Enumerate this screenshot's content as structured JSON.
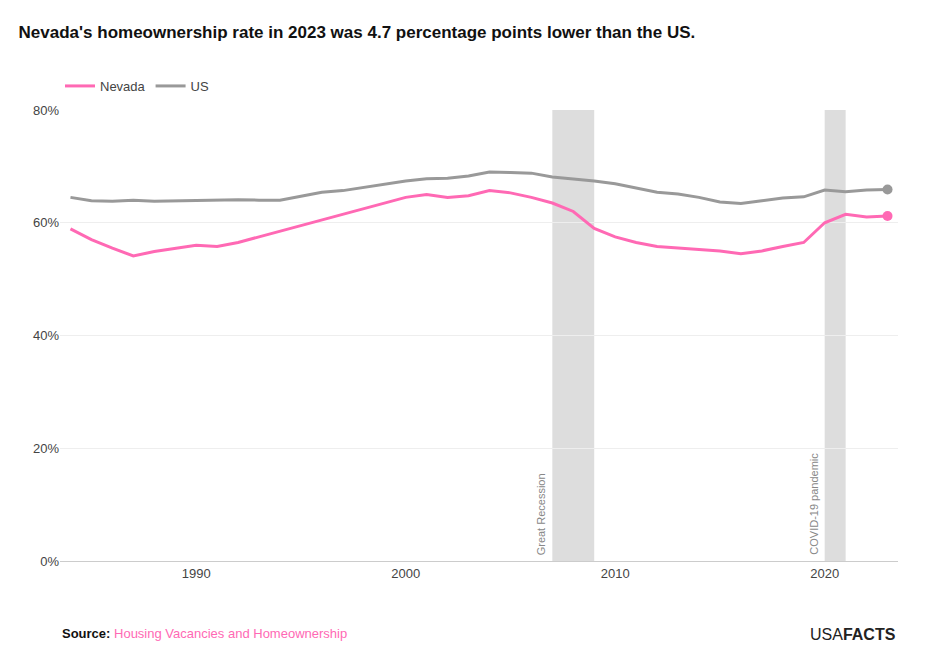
{
  "chart_data": {
    "type": "line",
    "title": "Nevada's homeownership rate in 2023 was 4.7 percentage points lower than the US.",
    "x": [
      1984,
      1985,
      1986,
      1987,
      1988,
      1989,
      1990,
      1991,
      1992,
      1993,
      1994,
      1995,
      1996,
      1997,
      1998,
      1999,
      2000,
      2001,
      2002,
      2003,
      2004,
      2005,
      2006,
      2007,
      2008,
      2009,
      2010,
      2011,
      2012,
      2013,
      2014,
      2015,
      2016,
      2017,
      2018,
      2019,
      2020,
      2021,
      2022,
      2023
    ],
    "series": [
      {
        "name": "Nevada",
        "color": "#FF69B4",
        "values": [
          58.9,
          57.0,
          55.5,
          54.1,
          54.9,
          55.5,
          56.0,
          55.8,
          56.5,
          57.5,
          58.5,
          59.5,
          60.5,
          61.5,
          62.5,
          63.5,
          64.5,
          65.0,
          64.5,
          64.8,
          65.7,
          65.3,
          64.5,
          63.5,
          62.0,
          59.0,
          57.5,
          56.5,
          55.8,
          55.5,
          55.2,
          55.0,
          54.5,
          55.0,
          55.8,
          56.5,
          60.0,
          61.5,
          61.0,
          61.2
        ]
      },
      {
        "name": "US",
        "color": "#999999",
        "values": [
          64.5,
          63.9,
          63.8,
          64.0,
          63.8,
          63.9,
          63.9,
          64.1,
          64.1,
          64.0,
          64.0,
          64.7,
          65.4,
          65.7,
          66.3,
          66.8,
          67.4,
          67.8,
          67.9,
          68.3,
          69.0,
          68.9,
          68.8,
          68.1,
          67.8,
          67.4,
          66.9,
          66.1,
          65.4,
          65.1,
          64.5,
          63.7,
          63.4,
          63.9,
          64.4,
          64.6,
          65.8,
          65.5,
          65.8,
          65.9
        ]
      }
    ],
    "xlim": [
      1983.5,
      2023.5
    ],
    "xticks": [
      1990,
      2000,
      2010,
      2020
    ],
    "ylim": [
      0,
      80
    ],
    "yticks": [
      {
        "value": 0,
        "label": "0%"
      },
      {
        "value": 20,
        "label": "20%"
      },
      {
        "value": 40,
        "label": "40%"
      },
      {
        "value": 60,
        "label": "60%"
      },
      {
        "value": 80,
        "label": "80%"
      }
    ],
    "grid": true,
    "legend": "upper left",
    "shaded_regions": [
      {
        "start": 2007,
        "end": 2009,
        "label": "Great Recession",
        "color": "#DDDDDD"
      },
      {
        "start": 2020,
        "end": 2021,
        "label": "COVID-19 pandemic",
        "color": "#DDDDDD"
      }
    ],
    "source": {
      "label": "Source: ",
      "text": "Housing Vacancies and Homeownership"
    },
    "watermark": {
      "normal": "USA",
      "bold": "FACTS"
    }
  }
}
